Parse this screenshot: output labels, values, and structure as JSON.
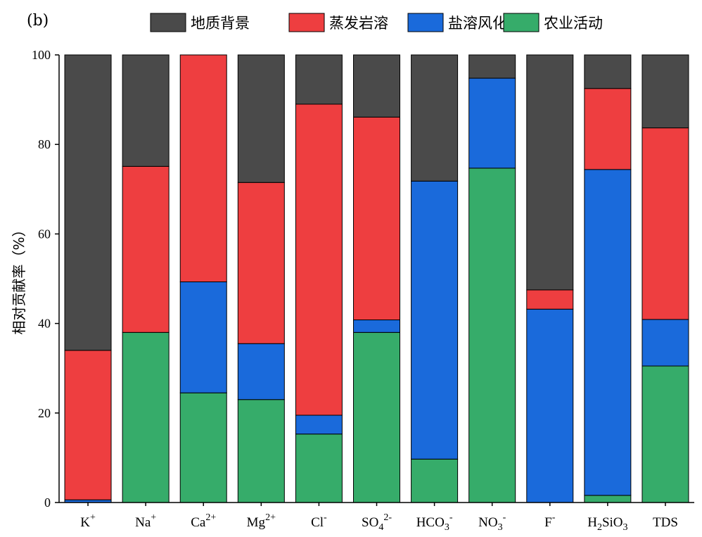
{
  "chart_data": {
    "type": "bar",
    "stacked": true,
    "panel_label": "(b)",
    "ylabel": "相对贡献率（%）",
    "ylim": [
      0,
      100
    ],
    "yticks": [
      "0",
      "20",
      "40",
      "60",
      "80",
      "100"
    ],
    "legend_position": "top",
    "categories": [
      {
        "base": "K",
        "sub": "",
        "sup": "+"
      },
      {
        "base": "Na",
        "sub": "",
        "sup": "+"
      },
      {
        "base": "Ca",
        "sub": "",
        "sup": "2+"
      },
      {
        "base": "Mg",
        "sub": "",
        "sup": "2+"
      },
      {
        "base": "Cl",
        "sub": "",
        "sup": "-"
      },
      {
        "base": "SO",
        "sub": "4",
        "sup": "2-"
      },
      {
        "base": "HCO",
        "sub": "3",
        "sup": "-"
      },
      {
        "base": "NO",
        "sub": "3",
        "sup": "-"
      },
      {
        "base": "F",
        "sub": "",
        "sup": "-"
      },
      {
        "base": "H",
        "sub": "2",
        "tail": "SiO",
        "sub2": "3"
      },
      {
        "base": "TDS",
        "sub": "",
        "sup": ""
      }
    ],
    "series": [
      {
        "name": "农业活动",
        "color": "#36ac6a",
        "values": [
          0,
          38,
          24.5,
          23,
          15.3,
          38,
          9.7,
          74.7,
          0,
          1.6,
          30.5
        ]
      },
      {
        "name": "盐溶风化",
        "color": "#1a6adb",
        "values": [
          0.6,
          0,
          24.8,
          12.5,
          4.2,
          2.8,
          62.1,
          20.1,
          43.2,
          72.8,
          10.4
        ]
      },
      {
        "name": "蒸发岩溶",
        "color": "#ee3e40",
        "values": [
          33.4,
          37.1,
          50.7,
          36,
          69.5,
          45.3,
          0,
          0,
          4.3,
          18.1,
          42.8
        ]
      },
      {
        "name": "地质背景",
        "color": "#4a4a4a",
        "values": [
          66,
          24.9,
          0,
          28.5,
          11,
          13.9,
          28.2,
          5.2,
          52.5,
          7.5,
          16.3
        ]
      }
    ],
    "legend_order": [
      "地质背景",
      "蒸发岩溶",
      "盐溶风化",
      "农业活动"
    ]
  }
}
